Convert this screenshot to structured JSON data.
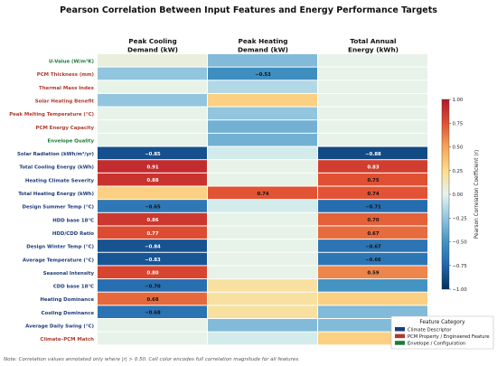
{
  "chart_data": {
    "type": "heatmap",
    "title": "Pearson Correlation Between Input Features and Energy Performance Targets",
    "columns": [
      [
        "Peak Cooling",
        "Demand (kW)"
      ],
      [
        "Peak Heating",
        "Demand (kW)"
      ],
      [
        "Total Annual",
        "Energy (kWh)"
      ]
    ],
    "rows": [
      {
        "label": "U-Value (W/m²K)",
        "category": "envelope",
        "values": [
          0.05,
          -0.3,
          0.02
        ]
      },
      {
        "label": "PCM Thickness (mm)",
        "category": "pcm",
        "values": [
          -0.25,
          -0.53,
          0.02
        ]
      },
      {
        "label": "Thermal Mass Index",
        "category": "pcm",
        "values": [
          0.02,
          -0.15,
          0.02
        ]
      },
      {
        "label": "Solar Heating Benefit",
        "category": "pcm",
        "values": [
          -0.25,
          0.3,
          0.02
        ]
      },
      {
        "label": "Peak Melting Temperature (°C)",
        "category": "pcm",
        "values": [
          0.02,
          -0.25,
          0.02
        ]
      },
      {
        "label": "PCM Energy Capacity",
        "category": "pcm",
        "values": [
          0.02,
          -0.35,
          0.02
        ]
      },
      {
        "label": "Envelope Quality",
        "category": "envelope",
        "values": [
          0.02,
          -0.35,
          0.02
        ]
      },
      {
        "label": "Solar Radiation (kWh/m²/yr)",
        "category": "climate",
        "values": [
          -0.85,
          -0.05,
          -0.88
        ]
      },
      {
        "label": "Total Cooling Energy (kWh)",
        "category": "climate",
        "values": [
          0.91,
          0.02,
          0.83
        ]
      },
      {
        "label": "Heating Climate Severity",
        "category": "climate",
        "values": [
          0.88,
          0.02,
          0.75
        ]
      },
      {
        "label": "Total Heating Energy (kWh)",
        "category": "climate",
        "values": [
          0.3,
          0.74,
          0.74
        ]
      },
      {
        "label": "Design Summer Temp (°C)",
        "category": "climate",
        "values": [
          -0.65,
          -0.05,
          -0.71
        ]
      },
      {
        "label": "HDD base 18°C",
        "category": "climate",
        "values": [
          0.86,
          0.02,
          0.7
        ]
      },
      {
        "label": "HDD/CDD Ratio",
        "category": "climate",
        "values": [
          0.77,
          0.02,
          0.67
        ]
      },
      {
        "label": "Design Winter Temp (°C)",
        "category": "climate",
        "values": [
          -0.84,
          0.02,
          -0.67
        ]
      },
      {
        "label": "Average Temperature (°C)",
        "category": "climate",
        "values": [
          -0.83,
          0.02,
          -0.66
        ]
      },
      {
        "label": "Seasonal Intensity",
        "category": "climate",
        "values": [
          0.8,
          0.02,
          0.59
        ]
      },
      {
        "label": "CDD base 18°C",
        "category": "climate",
        "values": [
          -0.7,
          0.2,
          -0.5
        ]
      },
      {
        "label": "Heating Dominance",
        "category": "climate",
        "values": [
          0.68,
          0.2,
          0.3
        ]
      },
      {
        "label": "Cooling Dominance",
        "category": "climate",
        "values": [
          -0.68,
          0.2,
          -0.3
        ]
      },
      {
        "label": "Average Daily Swing (°C)",
        "category": "climate",
        "values": [
          0.02,
          -0.3,
          -0.3
        ]
      },
      {
        "label": "Climate–PCM Match",
        "category": "pcm",
        "values": [
          0.02,
          -0.05,
          0.3
        ]
      }
    ],
    "annotate_threshold": 0.5,
    "colorbar": {
      "label": "Pearson Correlation Coefficient (r)",
      "range": [
        -1.0,
        1.0
      ],
      "ticks": [
        "1.00",
        "0.75",
        "0.50",
        "0.25",
        "0.00",
        "−0.25",
        "−0.50",
        "−0.75",
        "−1.00"
      ],
      "tick_values": [
        1.0,
        0.75,
        0.5,
        0.25,
        0.0,
        -0.25,
        -0.5,
        -0.75,
        -1.0
      ]
    },
    "legend": {
      "title": "Feature Category",
      "position": "bottom-right",
      "items": [
        {
          "key": "climate",
          "label": "Climate Descriptor",
          "color": "#1f3b7a"
        },
        {
          "key": "pcm",
          "label": "PCM Property / Engineered Feature",
          "color": "#b03a2e"
        },
        {
          "key": "envelope",
          "label": "Envelope / Configuration",
          "color": "#1e7a3a"
        }
      ]
    },
    "label_colors": {
      "climate": "#1f3b7a",
      "pcm": "#b03a2e",
      "envelope": "#1e7a3a"
    }
  },
  "note": "Note: Correlation values annotated only where |r| > 0.50. Cell color encodes full correlation magnitude for all features."
}
